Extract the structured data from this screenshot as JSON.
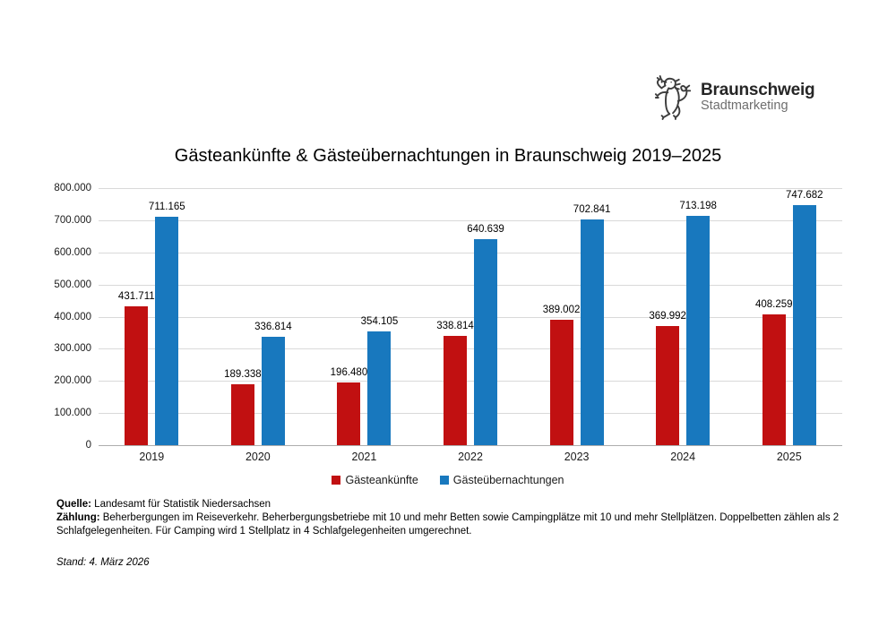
{
  "logo": {
    "name": "Braunschweig",
    "subtitle": "Stadtmarketing",
    "icon": "braunschweig-lion-icon"
  },
  "chart_data": {
    "type": "bar",
    "title": "Gästeankünfte & Gästeübernachtungen in Braunschweig 2019–2025",
    "categories": [
      "2019",
      "2020",
      "2021",
      "2022",
      "2023",
      "2024",
      "2025"
    ],
    "series": [
      {
        "key": "gaesteankuenfte",
        "name": "Gästeankünfte",
        "color": "#c11011",
        "values": [
          431711,
          189338,
          196480,
          338814,
          389002,
          369992,
          408259
        ]
      },
      {
        "key": "gaesteuebernachtungen",
        "name": "Gästeübernachtungen",
        "color": "#1878be",
        "values": [
          711165,
          336814,
          354105,
          640639,
          702841,
          713198,
          747682
        ]
      }
    ],
    "ylim": [
      0,
      800000
    ],
    "y_tick_step": 100000,
    "y_tick_labels": [
      "0",
      "100.000",
      "200.000",
      "300.000",
      "400.000",
      "500.000",
      "600.000",
      "700.000",
      "800.000"
    ],
    "number_format": "de-dot-thousands",
    "grid": true,
    "value_labels": true,
    "legend_position": "bottom",
    "xlabel": "",
    "ylabel": ""
  },
  "footer": {
    "source_label": "Quelle:",
    "source_text": " Landesamt für Statistik Niedersachsen",
    "method_label": "Zählung:",
    "method_text": " Beherbergungen im Reiseverkehr. Beherbergungsbetriebe mit 10 und mehr Betten sowie Campingplätze mit 10 und mehr Stellplätzen. Doppelbetten zählen als 2 Schlafgelegenheiten. Für Camping wird 1 Stellplatz in 4 Schlafgelegenheiten umgerechnet.",
    "stand_text": "Stand: 4. März 2026"
  }
}
